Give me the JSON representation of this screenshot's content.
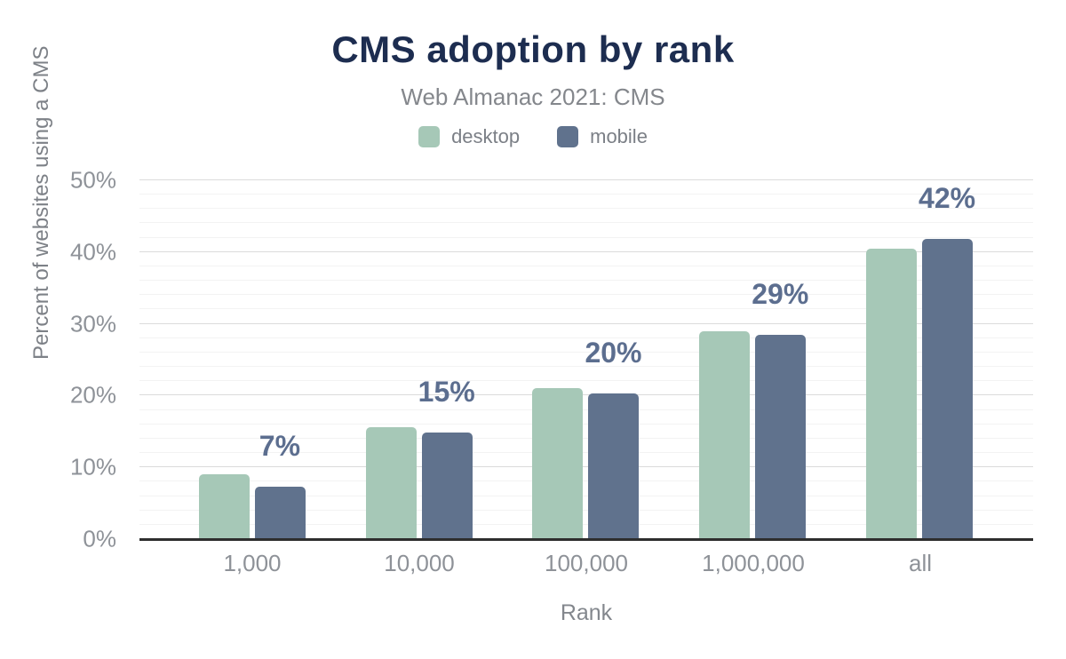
{
  "title": "CMS adoption by rank",
  "subtitle": "Web Almanac 2021: CMS",
  "legend": {
    "items": [
      {
        "label": "desktop",
        "color": "#a6c8b7"
      },
      {
        "label": "mobile",
        "color": "#60728d"
      }
    ]
  },
  "colors": {
    "title_text": "#1d2d50",
    "desktop_bar": "#a6c8b7",
    "mobile_bar": "#60728d",
    "bar_value_label": "#5c6e8f",
    "axis_line": "#2e2e2e",
    "major_gridline": "#dbdbdb",
    "minor_gridline": "#f3f3f3"
  },
  "chart_data": {
    "type": "bar",
    "title": "CMS adoption by rank",
    "subtitle": "Web Almanac 2021: CMS",
    "categories": [
      "1,000",
      "10,000",
      "100,000",
      "1,000,000",
      "all"
    ],
    "series": [
      {
        "name": "desktop",
        "color": "#a6c8b7",
        "values": [
          9.0,
          15.6,
          21.1,
          29.0,
          40.5
        ]
      },
      {
        "name": "mobile",
        "color": "#60728d",
        "values": [
          7.3,
          14.9,
          20.3,
          28.5,
          41.8
        ]
      }
    ],
    "bar_labels": {
      "attached_to_series": "mobile",
      "values": [
        "7%",
        "15%",
        "20%",
        "29%",
        "42%"
      ]
    },
    "xlabel": "Rank",
    "ylabel": "Percent of websites using a CMS",
    "ylim": [
      0,
      50
    ],
    "yticks": {
      "values": [
        0,
        10,
        20,
        30,
        40,
        50
      ],
      "labels": [
        "0%",
        "10%",
        "20%",
        "30%",
        "40%",
        "50%"
      ]
    },
    "grid": {
      "on": true,
      "major_interval": 10,
      "minor_interval": 2
    },
    "legend_position": "top"
  }
}
